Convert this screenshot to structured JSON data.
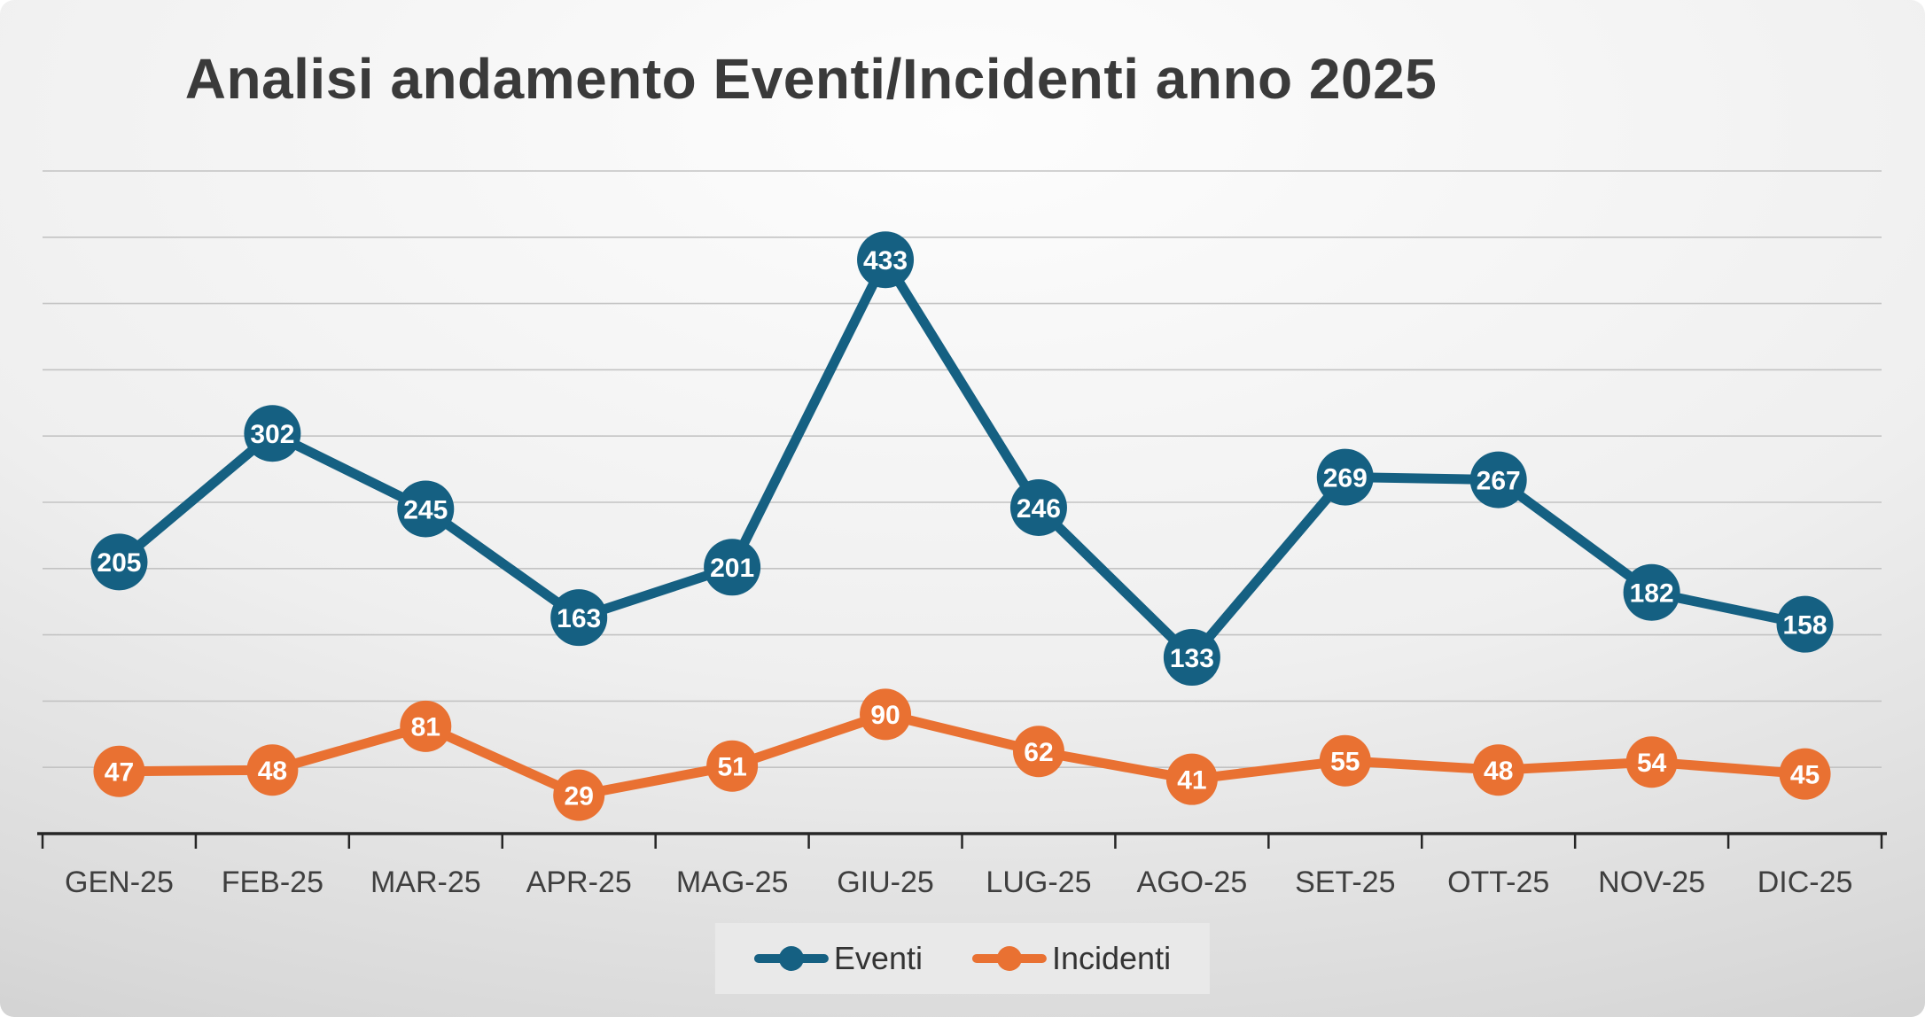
{
  "title": "Analisi andamento Eventi/Incidenti anno 2025",
  "chart_data": {
    "type": "line",
    "title": "Analisi andamento Eventi/Incidenti anno 2025",
    "categories": [
      "GEN-25",
      "FEB-25",
      "MAR-25",
      "APR-25",
      "MAG-25",
      "GIU-25",
      "LUG-25",
      "AGO-25",
      "SET-25",
      "OTT-25",
      "NOV-25",
      "DIC-25"
    ],
    "series": [
      {
        "name": "Eventi",
        "color": "#156082",
        "values": [
          205,
          302,
          245,
          163,
          201,
          433,
          246,
          133,
          269,
          267,
          182,
          158
        ]
      },
      {
        "name": "Incidenti",
        "color": "#E97132",
        "values": [
          47,
          48,
          81,
          29,
          51,
          90,
          62,
          41,
          55,
          48,
          54,
          45
        ]
      }
    ],
    "xlabel": "",
    "ylabel": "",
    "ylim": [
      0,
      500
    ],
    "grid_step": 50,
    "grid": true,
    "legend_position": "bottom",
    "data_labels": true
  },
  "colors": {
    "eventi": "#156082",
    "incidenti": "#E97132",
    "gridline": "#c3c3c3",
    "axis": "#262626",
    "title_text": "#3a3a3a",
    "data_label_text": "#ffffff",
    "category_text": "#3f3f3f",
    "legend_bg": "#e9e9e9"
  }
}
